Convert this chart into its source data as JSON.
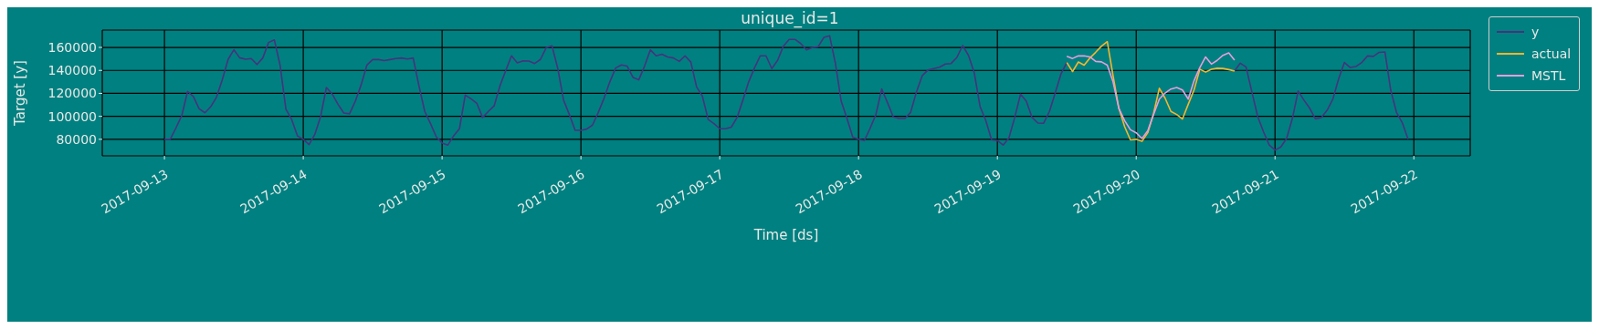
{
  "chart_data": {
    "type": "line",
    "title": "unique_id=1",
    "xlabel": "Time [ds]",
    "ylabel": "Target [y]",
    "x": [
      "2017-09-13T00:00",
      "2017-09-13T01:00",
      "2017-09-13T02:00",
      "2017-09-13T03:00",
      "2017-09-13T04:00",
      "2017-09-13T05:00",
      "2017-09-13T06:00",
      "2017-09-13T07:00",
      "2017-09-13T08:00",
      "2017-09-13T09:00",
      "2017-09-13T10:00",
      "2017-09-13T11:00",
      "2017-09-13T12:00",
      "2017-09-13T13:00",
      "2017-09-13T14:00",
      "2017-09-13T15:00",
      "2017-09-13T16:00",
      "2017-09-13T17:00",
      "2017-09-13T18:00",
      "2017-09-13T19:00",
      "2017-09-13T20:00",
      "2017-09-13T21:00",
      "2017-09-13T22:00",
      "2017-09-13T23:00",
      "2017-09-14T00:00",
      "2017-09-14T01:00",
      "2017-09-14T02:00",
      "2017-09-14T03:00",
      "2017-09-14T04:00",
      "2017-09-14T05:00",
      "2017-09-14T06:00",
      "2017-09-14T07:00",
      "2017-09-14T08:00",
      "2017-09-14T09:00",
      "2017-09-14T10:00",
      "2017-09-14T11:00",
      "2017-09-14T12:00",
      "2017-09-14T13:00",
      "2017-09-14T14:00",
      "2017-09-14T15:00",
      "2017-09-14T16:00",
      "2017-09-14T17:00",
      "2017-09-14T18:00",
      "2017-09-14T19:00",
      "2017-09-14T20:00",
      "2017-09-14T21:00",
      "2017-09-14T22:00",
      "2017-09-14T23:00",
      "2017-09-15T00:00",
      "2017-09-15T01:00",
      "2017-09-15T02:00",
      "2017-09-15T03:00",
      "2017-09-15T04:00",
      "2017-09-15T05:00",
      "2017-09-15T06:00",
      "2017-09-15T07:00",
      "2017-09-15T08:00",
      "2017-09-15T09:00",
      "2017-09-15T10:00",
      "2017-09-15T11:00",
      "2017-09-15T12:00",
      "2017-09-15T13:00",
      "2017-09-15T14:00",
      "2017-09-15T15:00",
      "2017-09-15T16:00",
      "2017-09-15T17:00",
      "2017-09-15T18:00",
      "2017-09-15T19:00",
      "2017-09-15T20:00",
      "2017-09-15T21:00",
      "2017-09-15T22:00",
      "2017-09-15T23:00",
      "2017-09-16T00:00",
      "2017-09-16T01:00",
      "2017-09-16T02:00",
      "2017-09-16T03:00",
      "2017-09-16T04:00",
      "2017-09-16T05:00",
      "2017-09-16T06:00",
      "2017-09-16T07:00",
      "2017-09-16T08:00",
      "2017-09-16T09:00",
      "2017-09-16T10:00",
      "2017-09-16T11:00",
      "2017-09-16T12:00",
      "2017-09-16T13:00",
      "2017-09-16T14:00",
      "2017-09-16T15:00",
      "2017-09-16T16:00",
      "2017-09-16T17:00",
      "2017-09-16T18:00",
      "2017-09-16T19:00",
      "2017-09-16T20:00",
      "2017-09-16T21:00",
      "2017-09-16T22:00",
      "2017-09-16T23:00",
      "2017-09-17T00:00",
      "2017-09-17T01:00",
      "2017-09-17T02:00",
      "2017-09-17T03:00",
      "2017-09-17T04:00",
      "2017-09-17T05:00",
      "2017-09-17T06:00",
      "2017-09-17T07:00",
      "2017-09-17T08:00",
      "2017-09-17T09:00",
      "2017-09-17T10:00",
      "2017-09-17T11:00",
      "2017-09-17T12:00",
      "2017-09-17T13:00",
      "2017-09-17T14:00",
      "2017-09-17T15:00",
      "2017-09-17T16:00",
      "2017-09-17T17:00",
      "2017-09-17T18:00",
      "2017-09-17T19:00",
      "2017-09-17T20:00",
      "2017-09-17T21:00",
      "2017-09-17T22:00",
      "2017-09-17T23:00",
      "2017-09-18T00:00",
      "2017-09-18T01:00",
      "2017-09-18T02:00",
      "2017-09-18T03:00",
      "2017-09-18T04:00",
      "2017-09-18T05:00",
      "2017-09-18T06:00",
      "2017-09-18T07:00",
      "2017-09-18T08:00",
      "2017-09-18T09:00",
      "2017-09-18T10:00",
      "2017-09-18T11:00",
      "2017-09-18T12:00",
      "2017-09-18T13:00",
      "2017-09-18T14:00",
      "2017-09-18T15:00",
      "2017-09-18T16:00",
      "2017-09-18T17:00",
      "2017-09-18T18:00",
      "2017-09-18T19:00",
      "2017-09-18T20:00",
      "2017-09-18T21:00",
      "2017-09-18T22:00",
      "2017-09-18T23:00",
      "2017-09-19T00:00",
      "2017-09-19T01:00",
      "2017-09-19T02:00",
      "2017-09-19T03:00",
      "2017-09-19T04:00",
      "2017-09-19T05:00",
      "2017-09-19T06:00",
      "2017-09-19T07:00",
      "2017-09-19T08:00",
      "2017-09-19T09:00",
      "2017-09-19T10:00",
      "2017-09-19T11:00",
      "2017-09-19T12:00",
      "2017-09-19T13:00",
      "2017-09-19T14:00",
      "2017-09-19T15:00",
      "2017-09-19T16:00",
      "2017-09-19T17:00",
      "2017-09-19T18:00",
      "2017-09-19T19:00",
      "2017-09-19T20:00",
      "2017-09-19T21:00",
      "2017-09-19T22:00",
      "2017-09-19T23:00",
      "2017-09-20T00:00",
      "2017-09-20T01:00",
      "2017-09-20T02:00",
      "2017-09-20T03:00",
      "2017-09-20T04:00",
      "2017-09-20T05:00",
      "2017-09-20T06:00",
      "2017-09-20T07:00",
      "2017-09-20T08:00",
      "2017-09-20T09:00",
      "2017-09-20T10:00",
      "2017-09-20T11:00",
      "2017-09-20T12:00",
      "2017-09-20T13:00",
      "2017-09-20T14:00",
      "2017-09-20T15:00",
      "2017-09-20T16:00",
      "2017-09-20T17:00",
      "2017-09-20T18:00",
      "2017-09-20T19:00",
      "2017-09-20T20:00",
      "2017-09-20T21:00",
      "2017-09-20T22:00",
      "2017-09-20T23:00",
      "2017-09-21T00:00",
      "2017-09-21T01:00",
      "2017-09-21T02:00",
      "2017-09-21T03:00",
      "2017-09-21T04:00",
      "2017-09-21T05:00",
      "2017-09-21T06:00",
      "2017-09-21T07:00",
      "2017-09-21T08:00",
      "2017-09-21T09:00",
      "2017-09-21T10:00",
      "2017-09-21T11:00",
      "2017-09-21T12:00",
      "2017-09-21T13:00",
      "2017-09-21T14:00",
      "2017-09-21T15:00",
      "2017-09-21T16:00",
      "2017-09-21T17:00",
      "2017-09-21T18:00",
      "2017-09-21T19:00",
      "2017-09-21T20:00",
      "2017-09-21T21:00",
      "2017-09-21T22:00",
      "2017-09-21T23:00"
    ],
    "series": [
      {
        "name": "y",
        "color": "#46327e",
        "values": [
          80000,
          80000,
          90000,
          100800,
          121700,
          117300,
          106600,
          103100,
          108400,
          116700,
          131800,
          149500,
          158000,
          151000,
          149700,
          150300,
          145100,
          150800,
          164300,
          166600,
          144200,
          106100,
          97200,
          82800,
          80000,
          75400,
          84300,
          99900,
          125100,
          119400,
          110500,
          102900,
          102200,
          113200,
          127400,
          144600,
          149400,
          149400,
          148500,
          149400,
          150300,
          150800,
          149900,
          150800,
          126500,
          104300,
          93700,
          82100,
          76800,
          75000,
          83000,
          89200,
          118500,
          115300,
          111400,
          99000,
          104300,
          109100,
          126500,
          139800,
          152700,
          146500,
          148300,
          148100,
          146000,
          149500,
          159800,
          161400,
          141600,
          114100,
          101600,
          87800,
          87800,
          88900,
          92400,
          103400,
          115800,
          130000,
          142100,
          144800,
          143700,
          133900,
          131800,
          143700,
          157900,
          152700,
          154000,
          151700,
          150800,
          147800,
          152700,
          147200,
          125600,
          117600,
          97200,
          93700,
          89200,
          89200,
          90600,
          99000,
          114100,
          130000,
          142100,
          152700,
          152700,
          141600,
          148700,
          161100,
          167000,
          167000,
          163400,
          157900,
          159800,
          160500,
          168700,
          170100,
          146000,
          113200,
          98100,
          81800,
          80000,
          78900,
          89600,
          101600,
          123800,
          111900,
          99500,
          98100,
          98100,
          103400,
          121200,
          135300,
          140300,
          141600,
          142800,
          145600,
          146000,
          151300,
          161600,
          153100,
          138000,
          108700,
          96300,
          79500,
          78900,
          75000,
          81200,
          99000,
          119400,
          113200,
          99000,
          94200,
          94000,
          104300,
          120300,
          137000,
          146800,
          null,
          null,
          null,
          null,
          null,
          null,
          null,
          null,
          null,
          null,
          null,
          null,
          null,
          null,
          null,
          null,
          null,
          null,
          null,
          null,
          null,
          null,
          null,
          null,
          null,
          null,
          null,
          null,
          139500,
          146300,
          142800,
          121200,
          99900,
          86600,
          75000,
          70600,
          73300,
          80700,
          98100,
          122000,
          114100,
          107000,
          97700,
          99000,
          105200,
          115000,
          132700,
          146900,
          142500,
          143400,
          146900,
          152600,
          152200,
          155700,
          156100,
          122900,
          103400,
          94500,
          80000
        ]
      },
      {
        "name": "actual",
        "color": "#f5b62e",
        "x": [
          "2017-09-19T12:00",
          "2017-09-19T13:00",
          "2017-09-19T14:00",
          "2017-09-19T15:00",
          "2017-09-19T16:00",
          "2017-09-19T17:00",
          "2017-09-19T18:00",
          "2017-09-19T19:00",
          "2017-09-19T20:00",
          "2017-09-19T21:00",
          "2017-09-19T22:00",
          "2017-09-19T23:00",
          "2017-09-20T00:00",
          "2017-09-20T01:00",
          "2017-09-20T02:00",
          "2017-09-20T03:00",
          "2017-09-20T04:00",
          "2017-09-20T05:00",
          "2017-09-20T06:00",
          "2017-09-20T07:00",
          "2017-09-20T08:00",
          "2017-09-20T09:00",
          "2017-09-20T10:00",
          "2017-09-20T11:00",
          "2017-09-20T12:00",
          "2017-09-20T13:00",
          "2017-09-20T14:00",
          "2017-09-20T15:00",
          "2017-09-20T16:00",
          "2017-09-20T17:00"
        ],
        "values": [
          146800,
          139000,
          147300,
          144600,
          150800,
          155800,
          161100,
          165000,
          135300,
          107000,
          91000,
          79500,
          80000,
          78200,
          85700,
          102500,
          124400,
          115800,
          104300,
          101600,
          97700,
          110500,
          122900,
          141000,
          138500,
          141000,
          141900,
          141700,
          140700,
          139500
        ]
      },
      {
        "name": "MSTL",
        "color": "#e49ede",
        "x": [
          "2017-09-19T12:00",
          "2017-09-19T13:00",
          "2017-09-19T14:00",
          "2017-09-19T15:00",
          "2017-09-19T16:00",
          "2017-09-19T17:00",
          "2017-09-19T18:00",
          "2017-09-19T19:00",
          "2017-09-19T20:00",
          "2017-09-19T21:00",
          "2017-09-19T22:00",
          "2017-09-19T23:00",
          "2017-09-20T00:00",
          "2017-09-20T01:00",
          "2017-09-20T02:00",
          "2017-09-20T03:00",
          "2017-09-20T04:00",
          "2017-09-20T05:00",
          "2017-09-20T06:00",
          "2017-09-20T07:00",
          "2017-09-20T08:00",
          "2017-09-20T09:00",
          "2017-09-20T10:00",
          "2017-09-20T11:00",
          "2017-09-20T12:00",
          "2017-09-20T13:00",
          "2017-09-20T14:00",
          "2017-09-20T15:00",
          "2017-09-20T16:00",
          "2017-09-20T17:00"
        ],
        "values": [
          152200,
          150400,
          152600,
          152700,
          151700,
          147800,
          147400,
          144600,
          130000,
          107000,
          96300,
          88300,
          85700,
          80700,
          87500,
          101600,
          115000,
          120300,
          123800,
          125100,
          122900,
          115000,
          131000,
          142500,
          151700,
          145500,
          148700,
          153100,
          155300,
          149000
        ]
      }
    ],
    "xlim": [
      "2017-09-12T13:15",
      "2017-09-22T09:45"
    ],
    "xticks": [
      "2017-09-13",
      "2017-09-14",
      "2017-09-15",
      "2017-09-16",
      "2017-09-17",
      "2017-09-18",
      "2017-09-19",
      "2017-09-20",
      "2017-09-21",
      "2017-09-22"
    ],
    "ylim": [
      65600,
      175100
    ],
    "yticks": [
      80000,
      100000,
      120000,
      140000,
      160000
    ],
    "grid": true,
    "legend": "top right",
    "marker": "none",
    "line_style": "solid"
  }
}
